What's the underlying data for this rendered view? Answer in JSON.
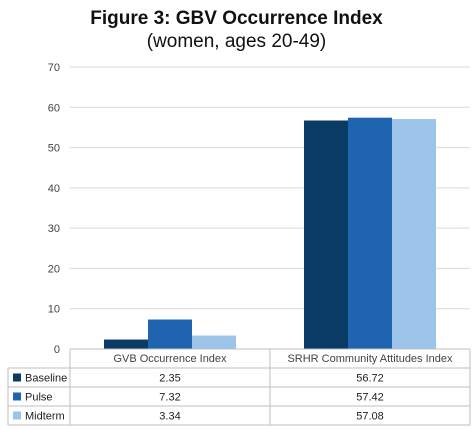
{
  "chart_data": {
    "type": "bar",
    "title": "Figure 3: GBV Occurrence Index",
    "subtitle": "(women, ages 20-49)",
    "categories": [
      "GVB Occurrence Index",
      "SRHR Community Attitudes Index"
    ],
    "series": [
      {
        "name": "Baseline",
        "values": [
          2.35,
          56.72
        ],
        "color": "#0a3a66",
        "display": [
          "2.35",
          "56.72"
        ]
      },
      {
        "name": "Pulse",
        "values": [
          7.32,
          57.42
        ],
        "color": "#1f64b0",
        "display": [
          "7.32",
          "57.42"
        ]
      },
      {
        "name": "Midterm",
        "values": [
          3.34,
          57.08
        ],
        "color": "#9cc3e8",
        "display": [
          "3.34",
          "57.08"
        ]
      }
    ],
    "ylim": [
      0,
      70
    ],
    "yticks": [
      0,
      10,
      20,
      30,
      40,
      50,
      60,
      70
    ],
    "grid": true,
    "legend": "data-table"
  }
}
